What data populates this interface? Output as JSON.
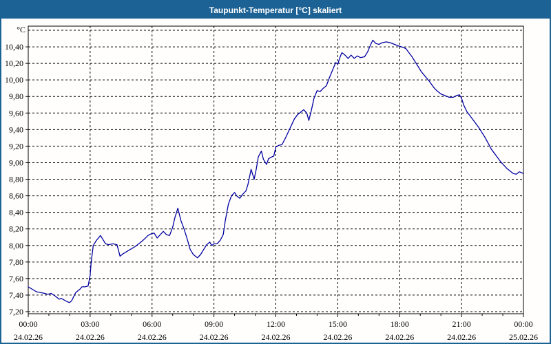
{
  "window": {
    "title": "Taupunkt-Temperatur [°C] skaliert",
    "title_bar_color": "#1d6295",
    "border_color": "#1d6295",
    "background": "#fffefd"
  },
  "chart_data": {
    "type": "line",
    "title": "Taupunkt-Temperatur [°C] skaliert",
    "unit_label": "°C",
    "line_color": "#0000a0",
    "grid_color": "#000000",
    "grid_style": "dashed",
    "ylim": [
      7.175,
      10.65
    ],
    "ytick_step": 0.2,
    "yticks": [
      {
        "value": 7.2,
        "label": "7,20"
      },
      {
        "value": 7.4,
        "label": "7,40"
      },
      {
        "value": 7.6,
        "label": "7,60"
      },
      {
        "value": 7.8,
        "label": "7,80"
      },
      {
        "value": 8.0,
        "label": "8,00"
      },
      {
        "value": 8.2,
        "label": "8,20"
      },
      {
        "value": 8.4,
        "label": "8,40"
      },
      {
        "value": 8.6,
        "label": "8,60"
      },
      {
        "value": 8.8,
        "label": "8,80"
      },
      {
        "value": 9.0,
        "label": "9,00"
      },
      {
        "value": 9.2,
        "label": "9,20"
      },
      {
        "value": 9.4,
        "label": "9,40"
      },
      {
        "value": 9.6,
        "label": "9,60"
      },
      {
        "value": 9.8,
        "label": "9,80"
      },
      {
        "value": 10.0,
        "label": "10,00"
      },
      {
        "value": 10.2,
        "label": "10,20"
      },
      {
        "value": 10.4,
        "label": "10,40"
      },
      {
        "value": 10.6,
        "label": ""
      }
    ],
    "xlim_hours": [
      0,
      24
    ],
    "minor_tick_hours": 1,
    "xticks": [
      {
        "t": 0,
        "time": "00:00",
        "date": "24.02.26"
      },
      {
        "t": 3,
        "time": "03:00",
        "date": "24.02.26"
      },
      {
        "t": 6,
        "time": "06:00",
        "date": "24.02.26"
      },
      {
        "t": 9,
        "time": "09:00",
        "date": "24.02.26"
      },
      {
        "t": 12,
        "time": "12:00",
        "date": "24.02.26"
      },
      {
        "t": 15,
        "time": "15:00",
        "date": "24.02.26"
      },
      {
        "t": 18,
        "time": "18:00",
        "date": "24.02.26"
      },
      {
        "t": 21,
        "time": "21:00",
        "date": "24.02.26"
      },
      {
        "t": 24,
        "time": "00:00",
        "date": "25.02.26"
      }
    ],
    "points": [
      [
        0,
        7.5
      ],
      [
        0.2,
        7.47
      ],
      [
        0.4,
        7.44
      ],
      [
        0.6,
        7.43
      ],
      [
        0.8,
        7.42
      ],
      [
        0.95,
        7.41
      ],
      [
        1.1,
        7.42
      ],
      [
        1.25,
        7.4
      ],
      [
        1.4,
        7.37
      ],
      [
        1.5,
        7.35
      ],
      [
        1.6,
        7.36
      ],
      [
        1.75,
        7.34
      ],
      [
        1.9,
        7.32
      ],
      [
        2.0,
        7.31
      ],
      [
        2.1,
        7.33
      ],
      [
        2.2,
        7.38
      ],
      [
        2.3,
        7.43
      ],
      [
        2.4,
        7.45
      ],
      [
        2.5,
        7.47
      ],
      [
        2.6,
        7.5
      ],
      [
        2.75,
        7.5
      ],
      [
        2.9,
        7.51
      ],
      [
        3.0,
        7.64
      ],
      [
        3.05,
        7.8
      ],
      [
        3.15,
        8.0
      ],
      [
        3.3,
        8.06
      ],
      [
        3.5,
        8.12
      ],
      [
        3.6,
        8.08
      ],
      [
        3.75,
        8.02
      ],
      [
        3.9,
        8.01
      ],
      [
        4.1,
        8.02
      ],
      [
        4.3,
        8.01
      ],
      [
        4.45,
        7.87
      ],
      [
        4.6,
        7.9
      ],
      [
        4.8,
        7.93
      ],
      [
        5.0,
        7.96
      ],
      [
        5.2,
        7.99
      ],
      [
        5.4,
        8.03
      ],
      [
        5.6,
        8.07
      ],
      [
        5.8,
        8.12
      ],
      [
        5.95,
        8.14
      ],
      [
        6.1,
        8.15
      ],
      [
        6.25,
        8.09
      ],
      [
        6.4,
        8.13
      ],
      [
        6.55,
        8.17
      ],
      [
        6.7,
        8.13
      ],
      [
        6.85,
        8.12
      ],
      [
        7.0,
        8.22
      ],
      [
        7.1,
        8.33
      ],
      [
        7.25,
        8.45
      ],
      [
        7.4,
        8.3
      ],
      [
        7.55,
        8.2
      ],
      [
        7.7,
        8.08
      ],
      [
        7.85,
        7.95
      ],
      [
        8.0,
        7.89
      ],
      [
        8.2,
        7.85
      ],
      [
        8.35,
        7.89
      ],
      [
        8.5,
        7.95
      ],
      [
        8.65,
        8.01
      ],
      [
        8.8,
        8.04
      ],
      [
        8.9,
        8.0
      ],
      [
        9.0,
        8.02
      ],
      [
        9.15,
        8.02
      ],
      [
        9.3,
        8.06
      ],
      [
        9.45,
        8.13
      ],
      [
        9.55,
        8.3
      ],
      [
        9.7,
        8.5
      ],
      [
        9.85,
        8.6
      ],
      [
        10.0,
        8.64
      ],
      [
        10.1,
        8.6
      ],
      [
        10.25,
        8.57
      ],
      [
        10.4,
        8.62
      ],
      [
        10.55,
        8.66
      ],
      [
        10.65,
        8.74
      ],
      [
        10.8,
        8.92
      ],
      [
        10.95,
        8.8
      ],
      [
        11.05,
        8.92
      ],
      [
        11.15,
        9.07
      ],
      [
        11.3,
        9.14
      ],
      [
        11.4,
        9.04
      ],
      [
        11.55,
        8.98
      ],
      [
        11.65,
        9.05
      ],
      [
        11.8,
        9.07
      ],
      [
        11.9,
        9.08
      ],
      [
        12.0,
        9.19
      ],
      [
        12.15,
        9.21
      ],
      [
        12.3,
        9.22
      ],
      [
        12.45,
        9.29
      ],
      [
        12.6,
        9.37
      ],
      [
        12.75,
        9.45
      ],
      [
        12.9,
        9.53
      ],
      [
        13.05,
        9.58
      ],
      [
        13.2,
        9.61
      ],
      [
        13.35,
        9.64
      ],
      [
        13.5,
        9.6
      ],
      [
        13.6,
        9.51
      ],
      [
        13.72,
        9.63
      ],
      [
        13.85,
        9.78
      ],
      [
        14.0,
        9.87
      ],
      [
        14.15,
        9.86
      ],
      [
        14.3,
        9.9
      ],
      [
        14.45,
        9.93
      ],
      [
        14.6,
        10.03
      ],
      [
        14.75,
        10.12
      ],
      [
        14.9,
        10.21
      ],
      [
        15.0,
        10.19
      ],
      [
        15.1,
        10.27
      ],
      [
        15.2,
        10.33
      ],
      [
        15.35,
        10.3
      ],
      [
        15.5,
        10.26
      ],
      [
        15.65,
        10.3
      ],
      [
        15.8,
        10.26
      ],
      [
        15.95,
        10.29
      ],
      [
        16.1,
        10.27
      ],
      [
        16.3,
        10.28
      ],
      [
        16.45,
        10.34
      ],
      [
        16.6,
        10.43
      ],
      [
        16.7,
        10.48
      ],
      [
        16.85,
        10.44
      ],
      [
        17.0,
        10.43
      ],
      [
        17.15,
        10.45
      ],
      [
        17.35,
        10.46
      ],
      [
        17.55,
        10.45
      ],
      [
        17.75,
        10.43
      ],
      [
        17.95,
        10.41
      ],
      [
        18.1,
        10.4
      ],
      [
        18.3,
        10.38
      ],
      [
        18.45,
        10.33
      ],
      [
        18.6,
        10.28
      ],
      [
        18.75,
        10.22
      ],
      [
        18.9,
        10.16
      ],
      [
        19.05,
        10.1
      ],
      [
        19.25,
        10.04
      ],
      [
        19.45,
        9.98
      ],
      [
        19.65,
        9.91
      ],
      [
        19.8,
        9.87
      ],
      [
        20.0,
        9.83
      ],
      [
        20.2,
        9.81
      ],
      [
        20.4,
        9.79
      ],
      [
        20.6,
        9.79
      ],
      [
        20.75,
        9.81
      ],
      [
        20.9,
        9.82
      ],
      [
        21.0,
        9.78
      ],
      [
        21.1,
        9.7
      ],
      [
        21.25,
        9.62
      ],
      [
        21.4,
        9.57
      ],
      [
        21.55,
        9.52
      ],
      [
        21.7,
        9.47
      ],
      [
        21.85,
        9.42
      ],
      [
        22.0,
        9.36
      ],
      [
        22.15,
        9.3
      ],
      [
        22.3,
        9.23
      ],
      [
        22.45,
        9.16
      ],
      [
        22.6,
        9.11
      ],
      [
        22.75,
        9.06
      ],
      [
        22.9,
        9.01
      ],
      [
        23.05,
        8.97
      ],
      [
        23.2,
        8.93
      ],
      [
        23.35,
        8.9
      ],
      [
        23.5,
        8.87
      ],
      [
        23.65,
        8.86
      ],
      [
        23.8,
        8.89
      ],
      [
        23.9,
        8.88
      ],
      [
        24.0,
        8.87
      ]
    ]
  }
}
